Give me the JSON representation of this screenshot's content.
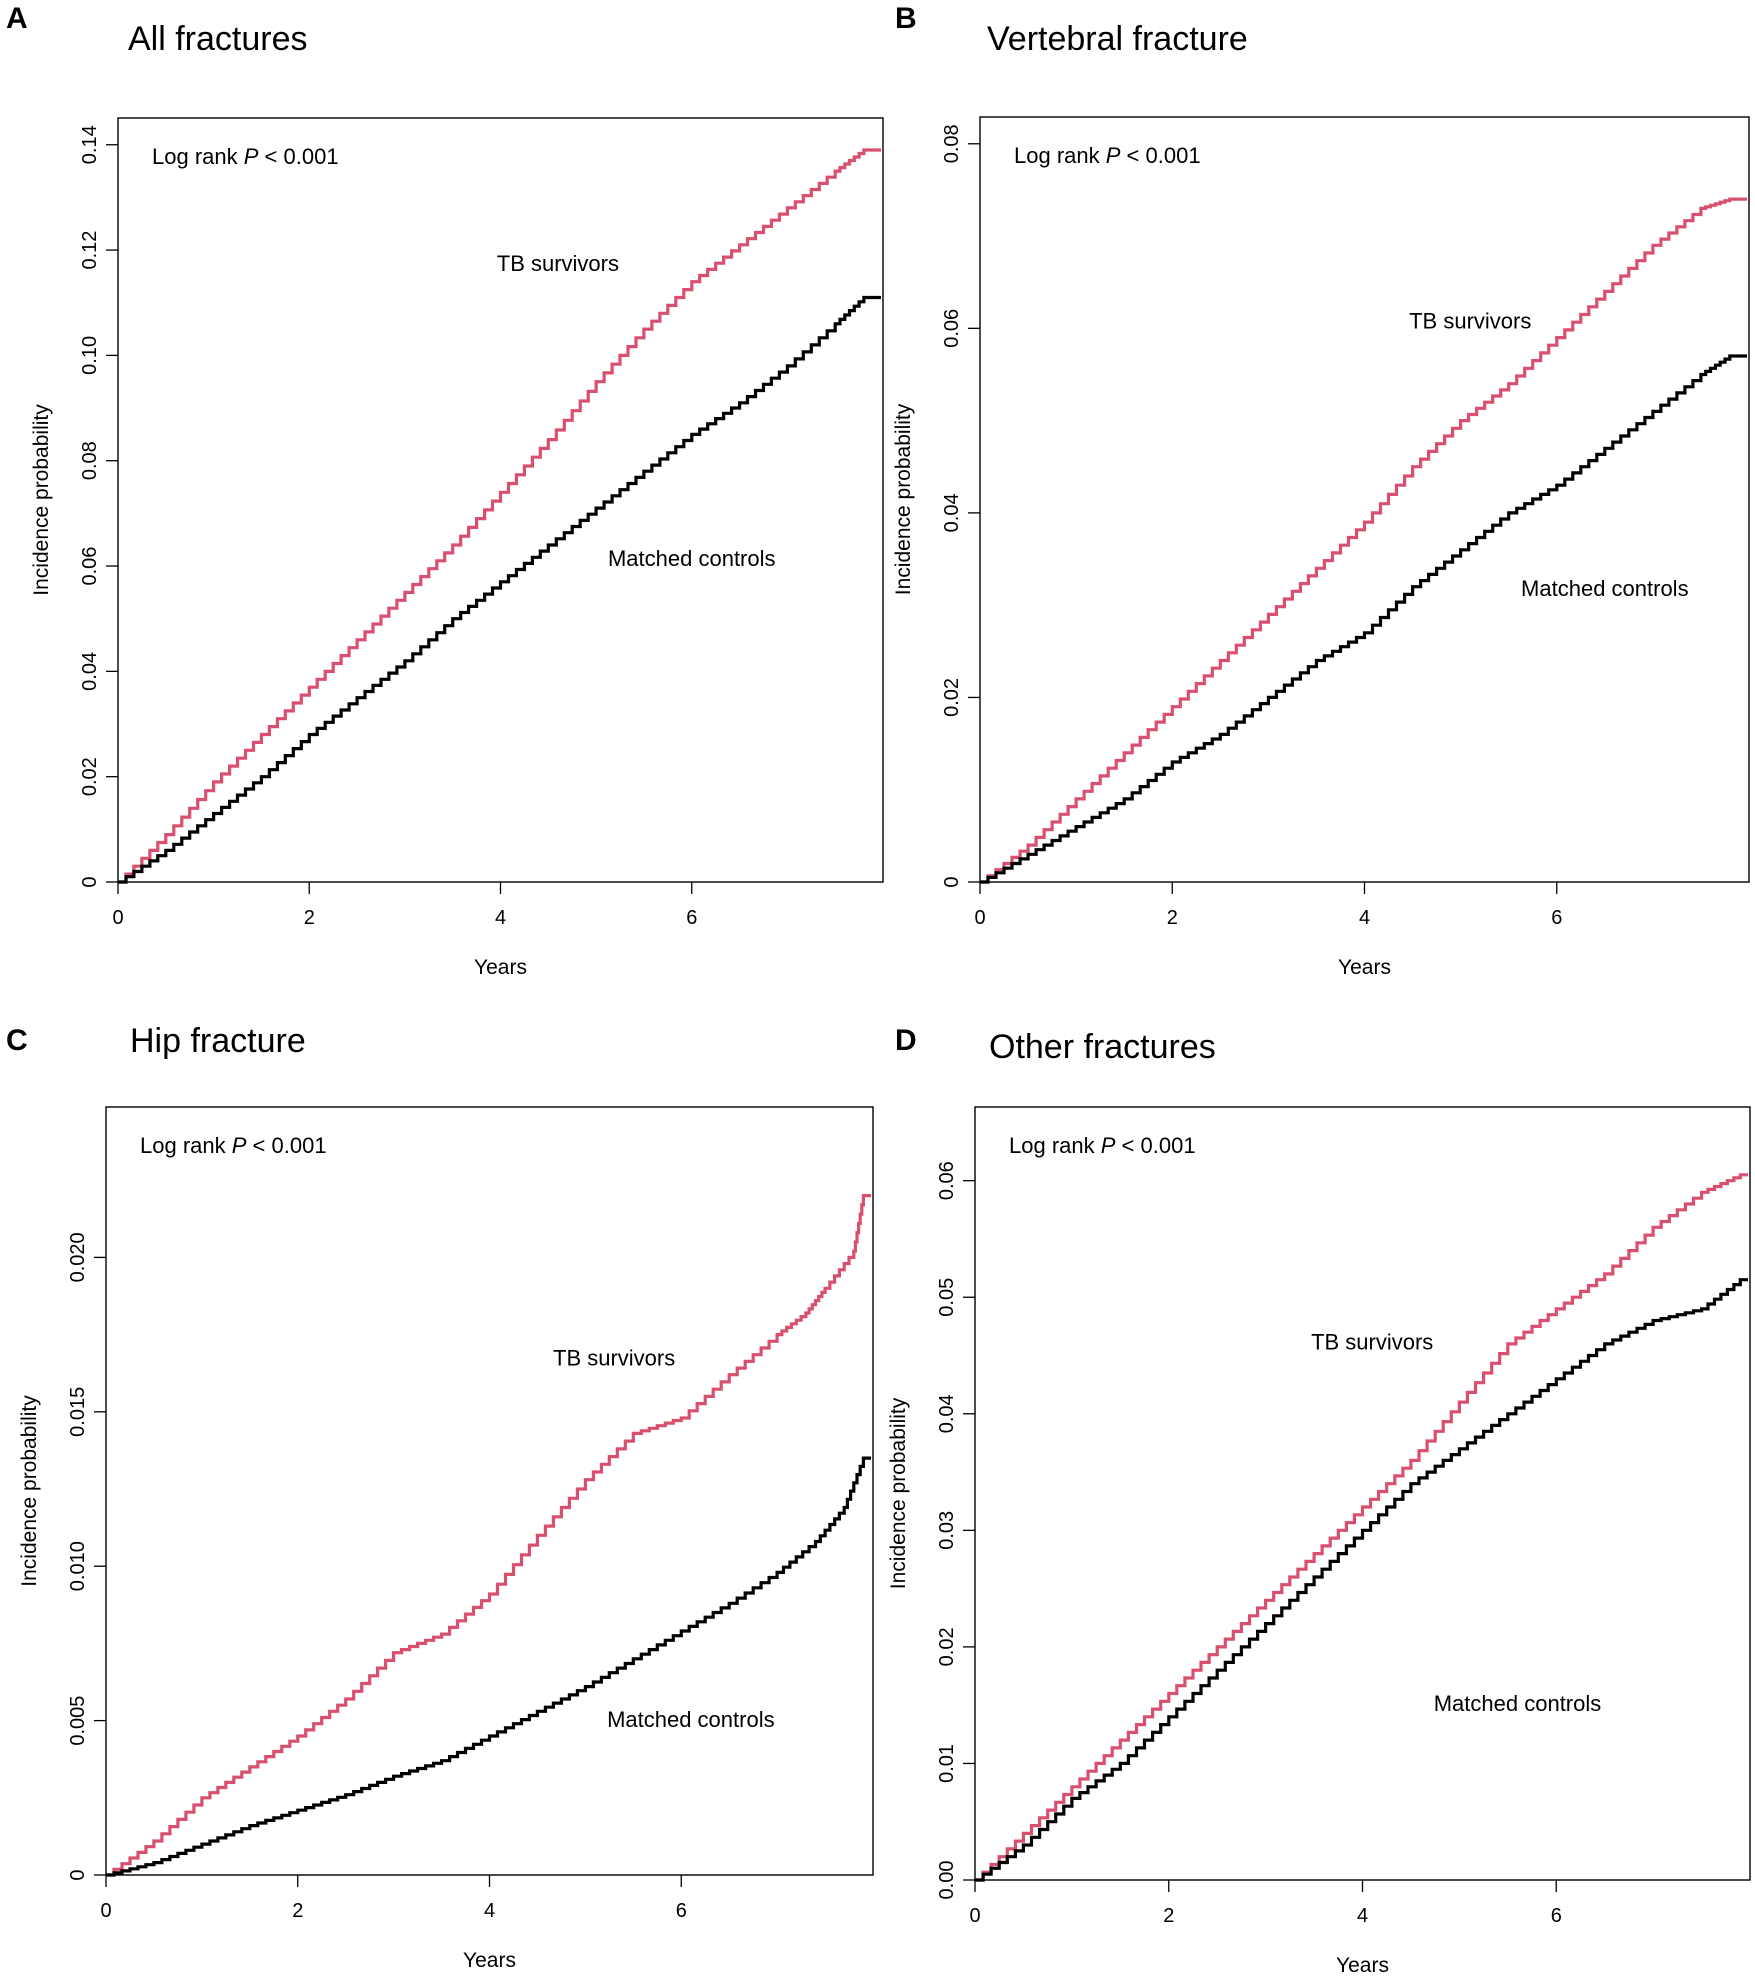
{
  "figure": {
    "colors": {
      "tb": "#d9506e",
      "control": "#000000"
    }
  },
  "chart_data": [
    {
      "type": "line",
      "panel_letter": "A",
      "title": "All fractures",
      "xlabel": "Years",
      "ylabel": "Incidence probability",
      "annotation_prefix": "Log rank ",
      "annotation_p": "P",
      "annotation_suffix": " < 0.001",
      "xlim": [
        0,
        8
      ],
      "ylim": [
        0,
        0.14
      ],
      "xticks": [
        0,
        2,
        4,
        6
      ],
      "xtick_labels": [
        "0",
        "2",
        "4",
        "6"
      ],
      "yticks": [
        0,
        0.02,
        0.04,
        0.06,
        0.08,
        0.1,
        0.12,
        0.14
      ],
      "ytick_labels": [
        "0",
        "0.02",
        "0.04",
        "0.06",
        "0.08",
        "0.10",
        "0.12",
        "0.14"
      ],
      "series": [
        {
          "name": "TB survivors",
          "label_pos": [
            4.6,
            0.116
          ],
          "x": [
            0,
            0.5,
            1,
            1.5,
            2,
            2.5,
            3,
            3.5,
            4,
            4.5,
            5,
            5.5,
            6,
            6.5,
            7,
            7.5,
            7.8
          ],
          "y": [
            0,
            0.009,
            0.019,
            0.028,
            0.037,
            0.046,
            0.055,
            0.064,
            0.074,
            0.084,
            0.095,
            0.105,
            0.114,
            0.121,
            0.128,
            0.135,
            0.139
          ]
        },
        {
          "name": "Matched controls",
          "label_pos": [
            6.0,
            0.06
          ],
          "x": [
            0,
            0.5,
            1,
            1.5,
            2,
            2.5,
            3,
            3.5,
            4,
            4.5,
            5,
            5.5,
            6,
            6.5,
            7,
            7.5,
            7.8
          ],
          "y": [
            0,
            0.006,
            0.013,
            0.02,
            0.028,
            0.035,
            0.042,
            0.05,
            0.057,
            0.064,
            0.071,
            0.078,
            0.085,
            0.091,
            0.098,
            0.106,
            0.111
          ]
        }
      ]
    },
    {
      "type": "line",
      "panel_letter": "B",
      "title": "Vertebral fracture",
      "xlabel": "Years",
      "ylabel": "Incidence probability",
      "annotation_prefix": "Log rank ",
      "annotation_p": "P",
      "annotation_suffix": " < 0.001",
      "xlim": [
        0,
        8
      ],
      "ylim": [
        0,
        0.08
      ],
      "xticks": [
        0,
        2,
        4,
        6
      ],
      "xtick_labels": [
        "0",
        "2",
        "4",
        "6"
      ],
      "yticks": [
        0,
        0.02,
        0.04,
        0.06,
        0.08
      ],
      "ytick_labels": [
        "0",
        "0.02",
        "0.04",
        "0.06",
        "0.08"
      ],
      "series": [
        {
          "name": "TB survivors",
          "label_pos": [
            5.1,
            0.06
          ],
          "x": [
            0,
            0.5,
            1,
            1.5,
            2,
            2.5,
            3,
            3.5,
            4,
            4.5,
            5,
            5.5,
            6,
            6.5,
            7,
            7.5,
            7.8
          ],
          "y": [
            0,
            0.004,
            0.009,
            0.014,
            0.019,
            0.024,
            0.029,
            0.034,
            0.039,
            0.045,
            0.05,
            0.054,
            0.059,
            0.064,
            0.069,
            0.073,
            0.074
          ]
        },
        {
          "name": "Matched controls",
          "label_pos": [
            6.5,
            0.031
          ],
          "x": [
            0,
            0.5,
            1,
            1.5,
            2,
            2.5,
            3,
            3.5,
            4,
            4.5,
            5,
            5.5,
            6,
            6.5,
            7,
            7.5,
            7.8
          ],
          "y": [
            0,
            0.003,
            0.006,
            0.009,
            0.013,
            0.016,
            0.02,
            0.024,
            0.027,
            0.032,
            0.036,
            0.04,
            0.043,
            0.047,
            0.051,
            0.055,
            0.057
          ]
        }
      ]
    },
    {
      "type": "line",
      "panel_letter": "C",
      "title": "Hip fracture",
      "xlabel": "Years",
      "ylabel": "Incidence probability",
      "annotation_prefix": "Log rank ",
      "annotation_p": "P",
      "annotation_suffix": " < 0.001",
      "xlim": [
        0,
        8
      ],
      "ylim": [
        0,
        0.024
      ],
      "xticks": [
        0,
        2,
        4,
        6
      ],
      "xtick_labels": [
        "0",
        "2",
        "4",
        "6"
      ],
      "yticks": [
        0,
        0.005,
        0.01,
        0.015,
        0.02
      ],
      "ytick_labels": [
        "0",
        "0.005",
        "0.010",
        "0.015",
        "0.020"
      ],
      "series": [
        {
          "name": "TB survivors",
          "label_pos": [
            5.3,
            0.0165
          ],
          "x": [
            0,
            0.5,
            1,
            1.5,
            2,
            2.5,
            3,
            3.5,
            4,
            4.5,
            5,
            5.5,
            6,
            6.5,
            7,
            7.3,
            7.5,
            7.8,
            7.9
          ],
          "y": [
            0,
            0.0011,
            0.0025,
            0.0035,
            0.0045,
            0.0057,
            0.0072,
            0.0078,
            0.0091,
            0.011,
            0.0128,
            0.0143,
            0.0148,
            0.0162,
            0.0175,
            0.0182,
            0.019,
            0.0202,
            0.022
          ]
        },
        {
          "name": "Matched controls",
          "label_pos": [
            6.1,
            0.0048
          ],
          "x": [
            0,
            0.5,
            1,
            1.5,
            2,
            2.5,
            3,
            3.5,
            4,
            4.5,
            5,
            5.5,
            6,
            6.5,
            7,
            7.4,
            7.7,
            7.9
          ],
          "y": [
            0,
            0.0004,
            0.001,
            0.0016,
            0.0021,
            0.0026,
            0.0032,
            0.0037,
            0.0045,
            0.0053,
            0.0061,
            0.007,
            0.0079,
            0.0088,
            0.0098,
            0.0108,
            0.0119,
            0.0135
          ]
        }
      ]
    },
    {
      "type": "line",
      "panel_letter": "D",
      "title": "Other fractures",
      "xlabel": "Years",
      "ylabel": "Incidence probability",
      "annotation_prefix": "Log rank ",
      "annotation_p": "P",
      "annotation_suffix": " < 0.001",
      "xlim": [
        0,
        8
      ],
      "ylim": [
        0,
        0.064
      ],
      "xticks": [
        0,
        2,
        4,
        6
      ],
      "xtick_labels": [
        "0",
        "2",
        "4",
        "6"
      ],
      "yticks": [
        0,
        0.01,
        0.02,
        0.03,
        0.04,
        0.05,
        0.06
      ],
      "ytick_labels": [
        "0.00",
        "0.01",
        "0.02",
        "0.03",
        "0.04",
        "0.05",
        "0.06"
      ],
      "series": [
        {
          "name": "TB survivors",
          "label_pos": [
            4.1,
            0.0455
          ],
          "x": [
            0,
            0.5,
            1,
            1.5,
            2,
            2.5,
            3,
            3.5,
            4,
            4.5,
            5,
            5.5,
            6,
            6.5,
            7,
            7.5,
            7.9
          ],
          "y": [
            0,
            0.004,
            0.008,
            0.012,
            0.016,
            0.02,
            0.024,
            0.028,
            0.032,
            0.036,
            0.041,
            0.046,
            0.049,
            0.052,
            0.056,
            0.059,
            0.0605
          ]
        },
        {
          "name": "Matched controls",
          "label_pos": [
            5.6,
            0.0145
          ],
          "x": [
            0,
            0.5,
            1,
            1.5,
            2,
            2.5,
            3,
            3.5,
            4,
            4.5,
            5,
            5.5,
            6,
            6.5,
            7,
            7.5,
            7.9
          ],
          "y": [
            0,
            0.003,
            0.007,
            0.01,
            0.014,
            0.018,
            0.022,
            0.026,
            0.03,
            0.034,
            0.037,
            0.04,
            0.043,
            0.046,
            0.048,
            0.049,
            0.0515
          ]
        }
      ]
    }
  ]
}
